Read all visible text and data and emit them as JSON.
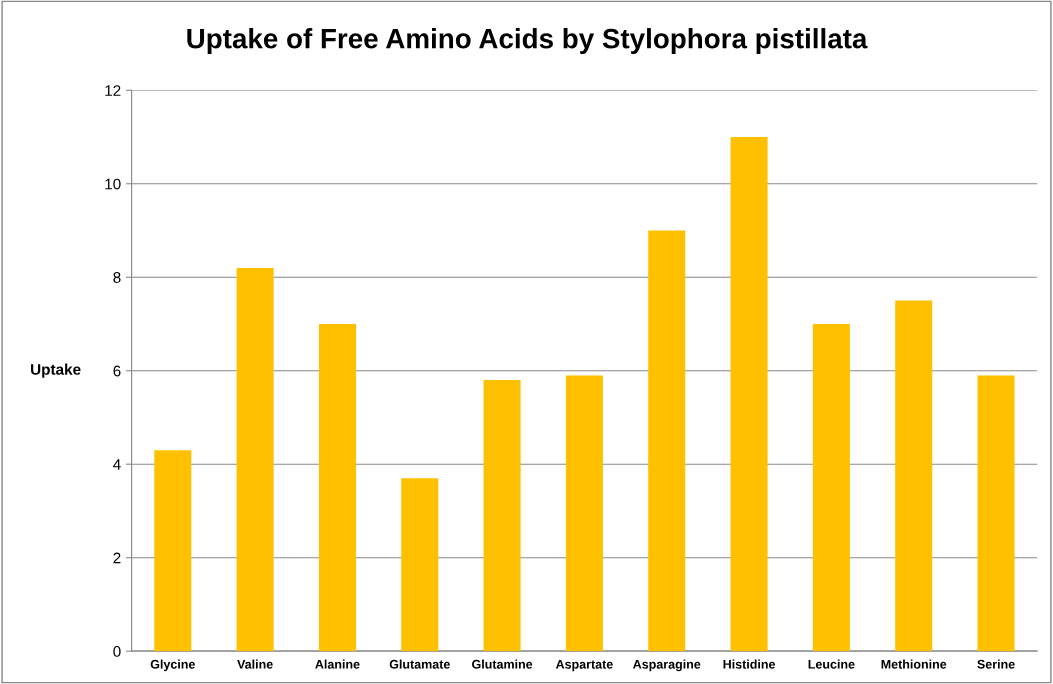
{
  "chart_data": {
    "type": "bar",
    "title": "Uptake of Free Amino Acids by Stylophora pistillata",
    "ylabel": "Uptake",
    "categories": [
      "Glycine",
      "Valine",
      "Alanine",
      "Glutamate",
      "Glutamine",
      "Aspartate",
      "Asparagine",
      "Histidine",
      "Leucine",
      "Methionine",
      "Serine"
    ],
    "values": [
      4.3,
      8.2,
      7.0,
      3.7,
      5.8,
      5.9,
      9.0,
      11.0,
      7.0,
      7.5,
      5.9
    ],
    "color": "#ffc000",
    "ylim": [
      0,
      12
    ],
    "yticks": [
      0,
      2,
      4,
      6,
      8,
      10,
      12
    ],
    "grid": "y",
    "legend": false
  }
}
